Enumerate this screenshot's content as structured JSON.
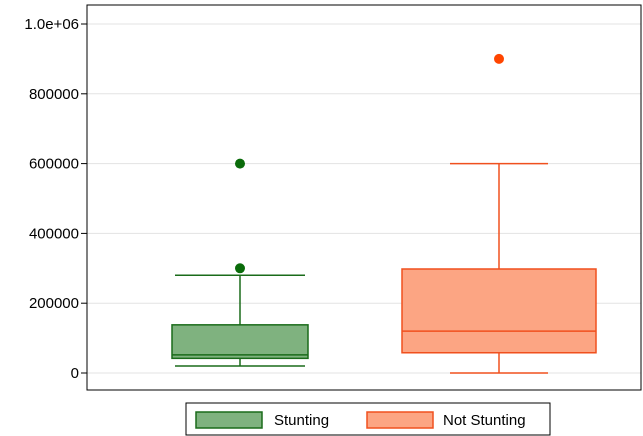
{
  "chart_data": {
    "type": "boxplot",
    "title": "",
    "xlabel": "",
    "ylabel": "",
    "ylim": [
      -40000,
      1050000
    ],
    "yticks": [
      {
        "value": 0,
        "label": "0"
      },
      {
        "value": 200000,
        "label": "200000"
      },
      {
        "value": 400000,
        "label": "400000"
      },
      {
        "value": 600000,
        "label": "600000"
      },
      {
        "value": 800000,
        "label": "800000"
      },
      {
        "value": 1000000,
        "label": "1.0e+06"
      }
    ],
    "grid": true,
    "legend_position": "bottom",
    "series": [
      {
        "name": "Stunting",
        "fill": "#7fb27f",
        "stroke": "#1a6b1a",
        "marker": "#0a6b0a",
        "whisker_low": 20000,
        "q1": 42000,
        "median": 52000,
        "q3": 138000,
        "whisker_high": 280000,
        "outliers": [
          300000,
          600000
        ]
      },
      {
        "name": "Not Stunting",
        "fill": "#fca583",
        "stroke": "#f0501e",
        "marker": "#ff4500",
        "whisker_low": 0,
        "q1": 58000,
        "median": 120000,
        "q3": 298000,
        "whisker_high": 600000,
        "outliers": [
          900000
        ]
      }
    ]
  }
}
